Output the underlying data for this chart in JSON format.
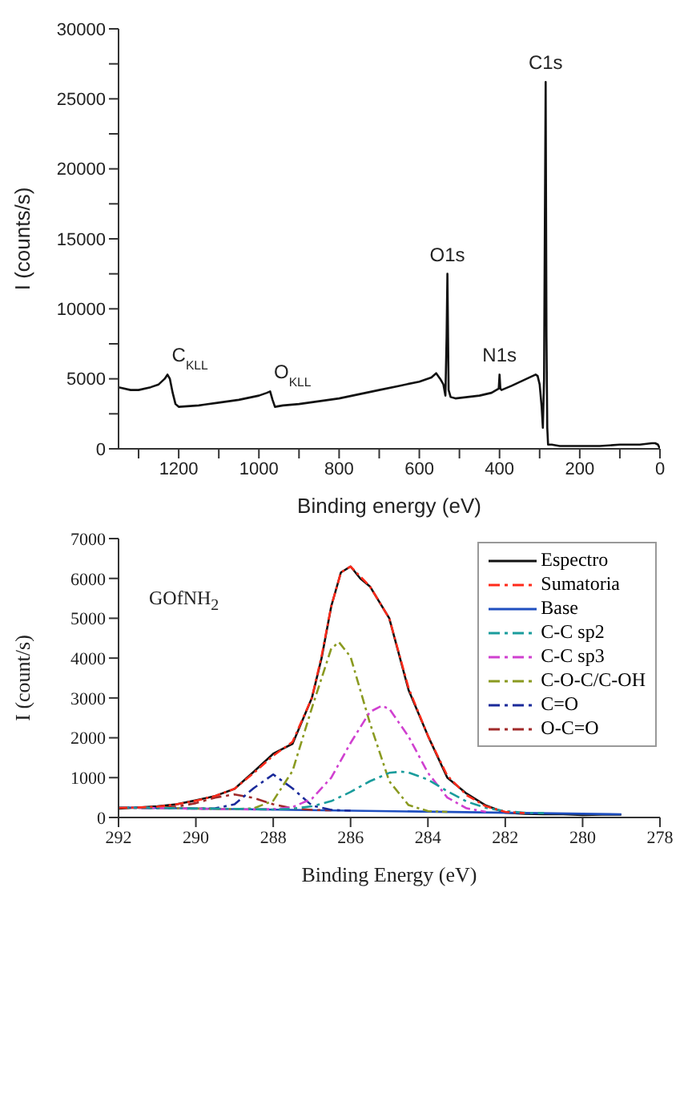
{
  "chart_data": [
    {
      "type": "line",
      "xlabel": "Binding energy (eV)",
      "ylabel": "I (counts/s)",
      "xlim": [
        1350,
        0
      ],
      "ylim": [
        0,
        30000
      ],
      "xticks": [
        {
          "value": 1300,
          "label": null
        },
        1200,
        {
          "value": 1100,
          "label": null
        },
        1000,
        {
          "value": 900,
          "label": null
        },
        800,
        {
          "value": 700,
          "label": null
        },
        600,
        {
          "value": 500,
          "label": null
        },
        400,
        {
          "value": 300,
          "label": null
        },
        200,
        {
          "value": 100,
          "label": null
        },
        0
      ],
      "yticks": [
        0,
        {
          "value": 2500,
          "label": null
        },
        5000,
        {
          "value": 7500,
          "label": null
        },
        10000,
        {
          "value": 12500,
          "label": null
        },
        15000,
        {
          "value": 17500,
          "label": null
        },
        20000,
        {
          "value": 22500,
          "label": null
        },
        25000,
        {
          "value": 27500,
          "label": null
        },
        30000
      ],
      "annotations": [
        {
          "text": "C$_{KLL}$",
          "x": 1228,
          "y": 5300
        },
        {
          "text": "O$_{KLL}$",
          "x": 972,
          "y": 4100
        },
        {
          "text": "O1s",
          "x": 530,
          "y": 12500
        },
        {
          "text": "N1s",
          "x": 400,
          "y": 5300
        },
        {
          "text": "C1s",
          "x": 285,
          "y": 26200
        }
      ],
      "series": [
        {
          "color": "#111111",
          "line_style": "solid",
          "x": [
            1350,
            1320,
            1300,
            1270,
            1250,
            1235,
            1228,
            1222,
            1215,
            1208,
            1200,
            1150,
            1100,
            1050,
            1000,
            980,
            972,
            966,
            960,
            940,
            900,
            850,
            800,
            750,
            700,
            650,
            600,
            570,
            558,
            548,
            540,
            535,
            532,
            530,
            527,
            522,
            510,
            480,
            450,
            420,
            402,
            400,
            398,
            395,
            370,
            340,
            310,
            305,
            300,
            295,
            292,
            289,
            287,
            285,
            283,
            281,
            279,
            270,
            250,
            200,
            150,
            100,
            50,
            20,
            12,
            5,
            0
          ],
          "values": [
            4400,
            4200,
            4200,
            4400,
            4600,
            5000,
            5300,
            5000,
            4000,
            3200,
            3000,
            3100,
            3300,
            3500,
            3800,
            4000,
            4100,
            3500,
            3000,
            3100,
            3200,
            3400,
            3600,
            3900,
            4200,
            4500,
            4800,
            5100,
            5400,
            5000,
            4600,
            3800,
            8000,
            12500,
            4200,
            3700,
            3600,
            3700,
            3800,
            4000,
            4300,
            5300,
            4300,
            4200,
            4500,
            4900,
            5300,
            5200,
            4600,
            3000,
            1500,
            5000,
            16000,
            26200,
            8000,
            1500,
            300,
            300,
            200,
            200,
            200,
            300,
            300,
            400,
            400,
            300,
            0
          ]
        }
      ]
    },
    {
      "type": "line",
      "xlabel": "Binding Energy (eV)",
      "ylabel": "I (count/s)",
      "xlim": [
        292,
        278
      ],
      "ylim": [
        0,
        7000
      ],
      "xticks": [
        292,
        290,
        288,
        286,
        284,
        282,
        280,
        278
      ],
      "yticks": [
        0,
        1000,
        2000,
        3000,
        4000,
        5000,
        6000,
        7000
      ],
      "legend": "top right",
      "annotations": [
        "GOfNH$_{2}$"
      ],
      "series": [
        {
          "name": "Espectro",
          "color": "#111111",
          "line_style": "solid",
          "x": [
            292,
            291.5,
            291,
            290.5,
            290,
            289.5,
            289,
            288.5,
            288,
            287.5,
            287,
            286.75,
            286.5,
            286.25,
            286,
            285.75,
            285.5,
            285,
            284.5,
            284,
            283.5,
            283,
            282.5,
            282,
            281.5,
            281,
            280.5,
            280,
            279.5,
            279
          ],
          "values": [
            220,
            250,
            280,
            330,
            430,
            540,
            720,
            1150,
            1600,
            1850,
            3000,
            4000,
            5300,
            6150,
            6300,
            6000,
            5800,
            5000,
            3200,
            2050,
            1000,
            600,
            300,
            120,
            90,
            80,
            80,
            60,
            70,
            70
          ]
        },
        {
          "name": "Sumatoria",
          "color": "#ff2a1a",
          "line_style": "dashed",
          "x": [
            292,
            291.5,
            291,
            290.5,
            290,
            289.5,
            289,
            288.5,
            288,
            287.5,
            287,
            286.75,
            286.5,
            286.25,
            286,
            285.75,
            285.5,
            285,
            284.5,
            284,
            283.5,
            283,
            282.5,
            282,
            281.5
          ],
          "values": [
            240,
            250,
            270,
            330,
            420,
            540,
            720,
            1120,
            1550,
            1900,
            3000,
            4050,
            5300,
            6150,
            6300,
            6050,
            5800,
            5000,
            3250,
            2050,
            1050,
            560,
            280,
            140,
            110
          ]
        },
        {
          "name": "Base",
          "color": "#1f4fbf",
          "line_style": "solid",
          "x": [
            292,
            279
          ],
          "values": [
            250,
            80
          ]
        },
        {
          "name": "C-C sp2",
          "color": "#1a9c9c",
          "line_style": "dashed",
          "x": [
            292,
            288.5,
            288,
            287.5,
            287,
            286.5,
            286,
            285.5,
            285,
            284.7,
            284.5,
            284,
            283.5,
            283,
            282.5,
            282,
            281.5,
            281
          ],
          "values": [
            250,
            210,
            200,
            220,
            280,
            410,
            640,
            910,
            1120,
            1150,
            1130,
            950,
            660,
            400,
            240,
            160,
            120,
            110
          ]
        },
        {
          "name": "C-C sp3",
          "color": "#d040d0",
          "line_style": "dashed",
          "x": [
            292,
            288.5,
            288,
            287.5,
            287,
            286.5,
            286,
            285.5,
            285.2,
            285,
            284.5,
            284,
            283.5,
            283,
            282.5
          ],
          "values": [
            250,
            200,
            210,
            260,
            470,
            1000,
            1870,
            2650,
            2800,
            2730,
            2030,
            1120,
            500,
            230,
            140
          ]
        },
        {
          "name": "C-O-C/C-OH",
          "color": "#8a9a20",
          "line_style": "dashed",
          "x": [
            292,
            289,
            288.5,
            288,
            287.5,
            287,
            286.5,
            286.3,
            286,
            285.5,
            285,
            284.5,
            284,
            283.5
          ],
          "values": [
            250,
            210,
            230,
            420,
            1170,
            2750,
            4240,
            4400,
            4030,
            2370,
            910,
            310,
            160,
            140
          ]
        },
        {
          "name": "C=O",
          "color": "#1a2a9a",
          "line_style": "dashed",
          "x": [
            292,
            290,
            289.5,
            289,
            288.5,
            288,
            287.5,
            287,
            286.5,
            286
          ],
          "values": [
            250,
            220,
            230,
            330,
            740,
            1080,
            730,
            300,
            190,
            170
          ]
        },
        {
          "name": "O-C=O",
          "color": "#a02a2a",
          "line_style": "dashed",
          "x": [
            292,
            291.5,
            291,
            290.5,
            290,
            289.5,
            289,
            288.5,
            288,
            287.5,
            287,
            286.5
          ],
          "values": [
            250,
            240,
            240,
            270,
            360,
            500,
            580,
            490,
            330,
            230,
            190,
            180
          ]
        }
      ]
    }
  ]
}
